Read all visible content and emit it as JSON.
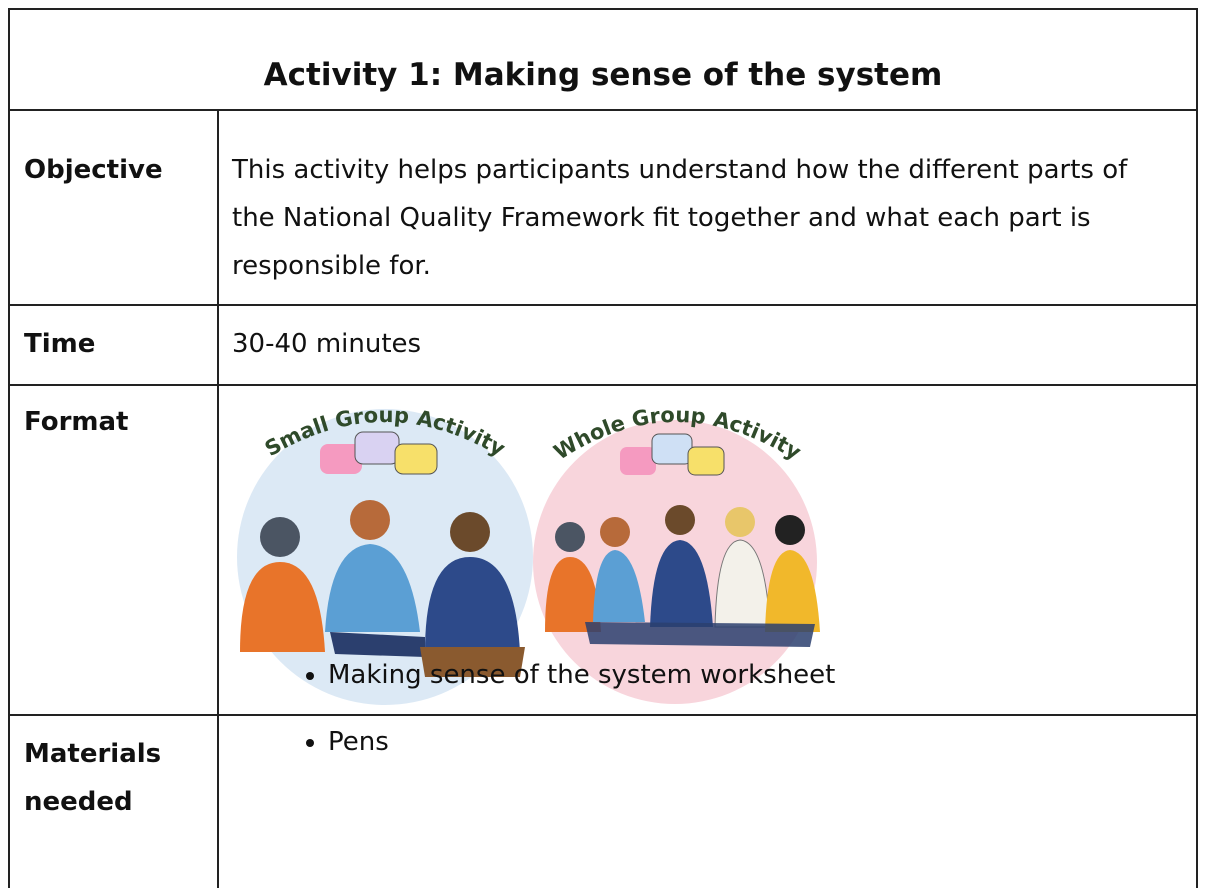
{
  "title": "Activity 1: Making sense of the system",
  "rows": [
    {
      "label": "Objective",
      "text": "This activity helps participants understand how the different parts of the National Quality Framework fit together and what each part is responsible for."
    },
    {
      "label": "Time",
      "text": "30-40 minutes"
    },
    {
      "label": "Format",
      "images": [
        {
          "caption": "Small Group Activity"
        },
        {
          "caption": "Whole Group Activity"
        }
      ]
    },
    {
      "label": "Materials needed",
      "items": [
        "Making sense of the system worksheet",
        "Pens"
      ]
    }
  ]
}
